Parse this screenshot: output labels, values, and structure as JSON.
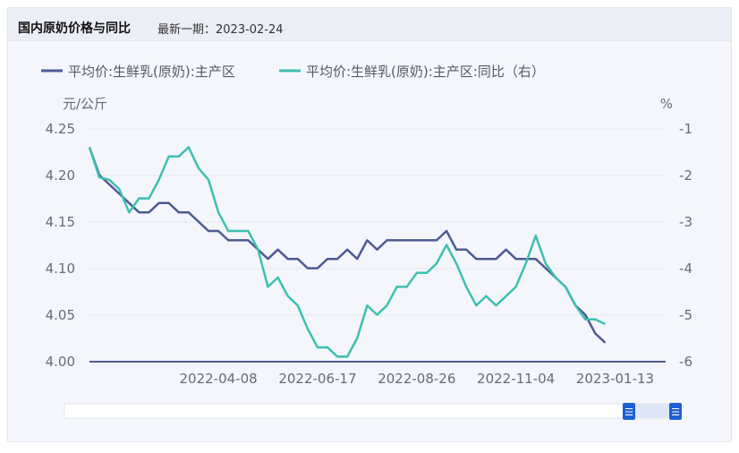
{
  "header": {
    "title": "国内原奶价格与同比",
    "subtitle": "最新一期：2023-02-24"
  },
  "colors": {
    "series1": "#4e5a92",
    "series2": "#3ebfb0",
    "axis": "#4e5a92",
    "grid": "#e6e9f2"
  },
  "chart_data": {
    "type": "line",
    "left_unit": "元/公斤",
    "right_unit": "%",
    "left_ylim": [
      4.0,
      4.25
    ],
    "left_ticks": [
      "4.25",
      "4.20",
      "4.15",
      "4.10",
      "4.05",
      "4.00"
    ],
    "right_ylim": [
      -6,
      -1
    ],
    "right_ticks": [
      "-1",
      "-2",
      "-3",
      "-4",
      "-5",
      "-6"
    ],
    "x_ticks": [
      "2022-04-08",
      "2022-06-17",
      "2022-08-26",
      "2022-11-04",
      "2023-01-13"
    ],
    "x_range": [
      "2022-01-07",
      "2023-02-24"
    ],
    "grid": true,
    "legend_position": "top-left",
    "series": [
      {
        "name": "平均价:生鲜乳(原奶):主产区",
        "axis": "left",
        "values": [
          [
            "2022-01-07",
            4.24
          ],
          [
            "2022-01-14",
            4.21
          ],
          [
            "2022-01-21",
            4.2
          ],
          [
            "2022-01-28",
            4.19
          ],
          [
            "2022-02-04",
            4.18
          ],
          [
            "2022-02-11",
            4.17
          ],
          [
            "2022-02-18",
            4.17
          ],
          [
            "2022-02-25",
            4.18
          ],
          [
            "2022-03-04",
            4.18
          ],
          [
            "2022-03-11",
            4.17
          ],
          [
            "2022-03-18",
            4.17
          ],
          [
            "2022-03-25",
            4.16
          ],
          [
            "2022-04-01",
            4.15
          ],
          [
            "2022-04-08",
            4.15
          ],
          [
            "2022-04-15",
            4.14
          ],
          [
            "2022-04-22",
            4.14
          ],
          [
            "2022-04-29",
            4.14
          ],
          [
            "2022-05-06",
            4.13
          ],
          [
            "2022-05-13",
            4.12
          ],
          [
            "2022-05-20",
            4.13
          ],
          [
            "2022-05-27",
            4.12
          ],
          [
            "2022-06-03",
            4.12
          ],
          [
            "2022-06-10",
            4.11
          ],
          [
            "2022-06-17",
            4.11
          ],
          [
            "2022-06-24",
            4.12
          ],
          [
            "2022-07-01",
            4.12
          ],
          [
            "2022-07-08",
            4.13
          ],
          [
            "2022-07-15",
            4.12
          ],
          [
            "2022-07-22",
            4.14
          ],
          [
            "2022-07-29",
            4.13
          ],
          [
            "2022-08-05",
            4.14
          ],
          [
            "2022-08-12",
            4.14
          ],
          [
            "2022-08-19",
            4.14
          ],
          [
            "2022-08-26",
            4.14
          ],
          [
            "2022-09-02",
            4.14
          ],
          [
            "2022-09-09",
            4.14
          ],
          [
            "2022-09-16",
            4.15
          ],
          [
            "2022-09-23",
            4.13
          ],
          [
            "2022-09-30",
            4.13
          ],
          [
            "2022-10-07",
            4.12
          ],
          [
            "2022-10-14",
            4.12
          ],
          [
            "2022-10-21",
            4.12
          ],
          [
            "2022-10-28",
            4.13
          ],
          [
            "2022-11-04",
            4.12
          ],
          [
            "2022-11-11",
            4.12
          ],
          [
            "2022-11-18",
            4.12
          ],
          [
            "2022-11-25",
            4.11
          ],
          [
            "2022-12-02",
            4.1
          ],
          [
            "2022-12-09",
            4.09
          ],
          [
            "2022-12-16",
            4.07
          ],
          [
            "2022-12-23",
            4.06
          ],
          [
            "2022-12-30",
            4.04
          ],
          [
            "2023-01-06",
            4.03
          ]
        ]
      },
      {
        "name": "平均价:生鲜乳(原奶):主产区:同比（右）",
        "axis": "right",
        "values": [
          [
            "2022-01-07",
            -1.2
          ],
          [
            "2022-01-14",
            -1.85
          ],
          [
            "2022-01-21",
            -1.9
          ],
          [
            "2022-01-28",
            -2.1
          ],
          [
            "2022-02-04",
            -2.6
          ],
          [
            "2022-02-11",
            -2.3
          ],
          [
            "2022-02-18",
            -2.3
          ],
          [
            "2022-02-25",
            -1.9
          ],
          [
            "2022-03-04",
            -1.4
          ],
          [
            "2022-03-11",
            -1.4
          ],
          [
            "2022-03-18",
            -1.2
          ],
          [
            "2022-03-25",
            -1.65
          ],
          [
            "2022-04-01",
            -1.9
          ],
          [
            "2022-04-08",
            -2.6
          ],
          [
            "2022-04-15",
            -3.0
          ],
          [
            "2022-04-22",
            -3.0
          ],
          [
            "2022-04-29",
            -3.0
          ],
          [
            "2022-05-06",
            -3.4
          ],
          [
            "2022-05-13",
            -4.2
          ],
          [
            "2022-05-20",
            -4.0
          ],
          [
            "2022-05-27",
            -4.4
          ],
          [
            "2022-06-03",
            -4.6
          ],
          [
            "2022-06-10",
            -5.1
          ],
          [
            "2022-06-17",
            -5.5
          ],
          [
            "2022-06-24",
            -5.5
          ],
          [
            "2022-07-01",
            -5.7
          ],
          [
            "2022-07-08",
            -5.7
          ],
          [
            "2022-07-15",
            -5.3
          ],
          [
            "2022-07-22",
            -4.6
          ],
          [
            "2022-07-29",
            -4.8
          ],
          [
            "2022-08-05",
            -4.6
          ],
          [
            "2022-08-12",
            -4.2
          ],
          [
            "2022-08-19",
            -4.2
          ],
          [
            "2022-08-26",
            -3.9
          ],
          [
            "2022-09-02",
            -3.9
          ],
          [
            "2022-09-09",
            -3.7
          ],
          [
            "2022-09-16",
            -3.3
          ],
          [
            "2022-09-23",
            -3.7
          ],
          [
            "2022-09-30",
            -4.2
          ],
          [
            "2022-10-07",
            -4.6
          ],
          [
            "2022-10-14",
            -4.4
          ],
          [
            "2022-10-21",
            -4.6
          ],
          [
            "2022-10-28",
            -4.4
          ],
          [
            "2022-11-04",
            -4.2
          ],
          [
            "2022-11-11",
            -3.7
          ],
          [
            "2022-11-18",
            -3.1
          ],
          [
            "2022-11-25",
            -3.7
          ],
          [
            "2022-12-02",
            -4.0
          ],
          [
            "2022-12-09",
            -4.2
          ],
          [
            "2022-12-16",
            -4.6
          ],
          [
            "2022-12-23",
            -4.9
          ],
          [
            "2022-12-30",
            -4.9
          ],
          [
            "2023-01-06",
            -5.0
          ]
        ]
      }
    ]
  },
  "slider": {
    "start_fraction": 0.0,
    "end_fraction": 1.0,
    "handle_glyph": "☰"
  }
}
